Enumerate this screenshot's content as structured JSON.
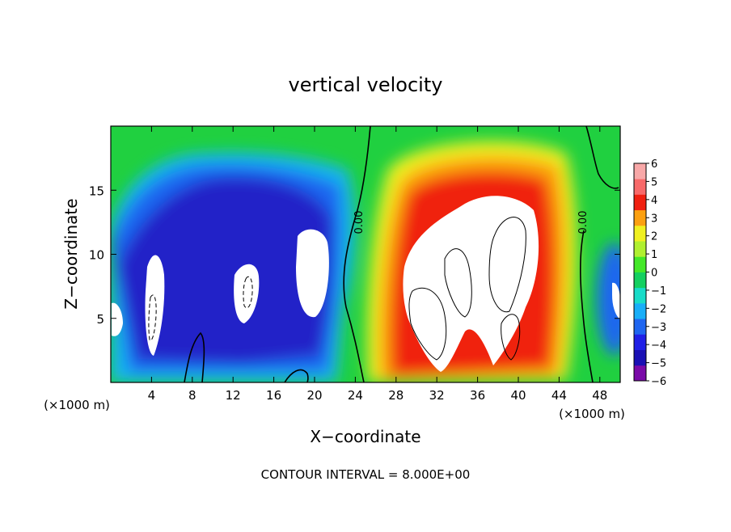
{
  "chart_data": {
    "type": "heatmap",
    "title": "vertical velocity",
    "xlabel": "X−coordinate",
    "ylabel": "Z−coordinate",
    "x_unit_left": "(×1000 m)",
    "x_unit_right": "(×1000 m)",
    "xlim": [
      0,
      50
    ],
    "ylim": [
      0,
      20
    ],
    "x_ticks": [
      4,
      8,
      12,
      16,
      20,
      24,
      28,
      32,
      36,
      40,
      44,
      48
    ],
    "y_ticks": [
      5,
      10,
      15
    ],
    "footer": "CONTOUR INTERVAL = 8.000E+00",
    "contour_label": "0.00",
    "colorbar": {
      "levels": [
        -6,
        -5,
        -4,
        -3,
        -2,
        -1,
        0,
        1,
        2,
        3,
        4,
        5,
        6
      ],
      "labels": [
        "−6",
        "−5",
        "−4",
        "−3",
        "−2",
        "−1",
        "0",
        "1",
        "2",
        "3",
        "4",
        "5",
        "6"
      ],
      "colors": [
        "#7a0aa8",
        "#1a10b4",
        "#2020e6",
        "#1f66f0",
        "#18aef8",
        "#18dcc8",
        "#14d060",
        "#44e828",
        "#b0f030",
        "#f0f020",
        "#fca010",
        "#f02010",
        "#f86a6a",
        "#f8a8a8"
      ]
    }
  }
}
